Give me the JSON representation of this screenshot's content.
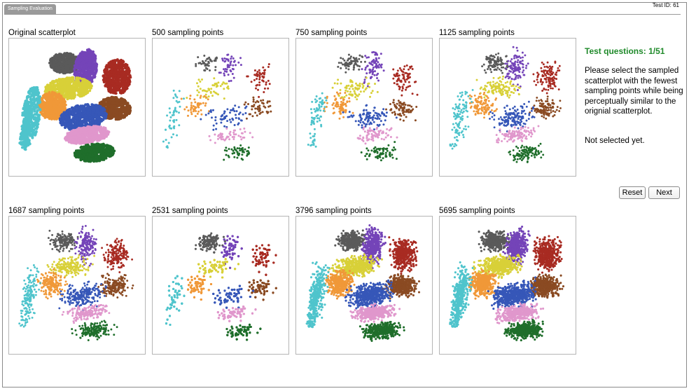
{
  "window": {
    "tab_label": "Sampling Evaluation",
    "test_id": "Test ID: 61"
  },
  "panels": [
    {
      "title": "Original scatterplot",
      "points": 5000
    },
    {
      "title": "500 sampling points",
      "points": 500
    },
    {
      "title": "750 sampling points",
      "points": 750
    },
    {
      "title": "1125 sampling points",
      "points": 1125
    },
    {
      "title": "1687 sampling points",
      "points": 1687
    },
    {
      "title": "2531 sampling points",
      "points": 2531
    },
    {
      "title": "3796 sampling points",
      "points": 3796
    },
    {
      "title": "5695 sampling points",
      "points": 5695
    }
  ],
  "cluster_colors": {
    "gray": "#5a5a5a",
    "purple": "#7444b8",
    "red": "#a82b22",
    "yellow": "#d8d038",
    "orange": "#f09838",
    "brown": "#8a4a22",
    "blue": "#3657b8",
    "pink": "#e097cc",
    "green": "#1f6e2b",
    "cyan": "#4fc4cc"
  },
  "questions": {
    "counter": "Test questions: 1/51",
    "prompt": "Please select the sampled scatterplot with the fewest sampling points while being perceptually similar to the orignial scatterplot.",
    "status": "Not selected yet.",
    "counter_color": "#1f8a2a"
  },
  "buttons": {
    "reset": "Reset",
    "next": "Next"
  }
}
